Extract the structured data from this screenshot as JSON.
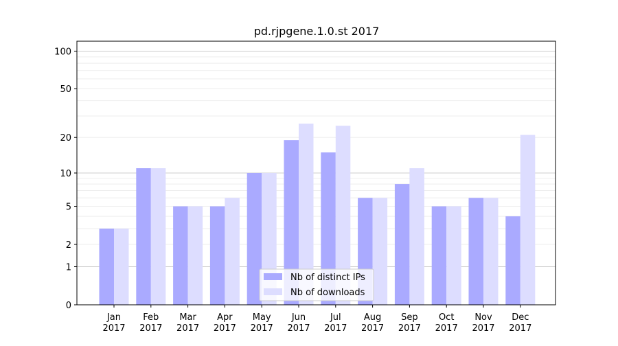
{
  "chart_data": {
    "type": "bar",
    "title": "pd.rjpgene.1.0.st 2017",
    "xlabel": "",
    "ylabel": "",
    "y_scale": "log1p",
    "ylim": [
      0,
      120
    ],
    "y_ticks": [
      0,
      1,
      2,
      5,
      10,
      20,
      50,
      100
    ],
    "y_tick_labels": [
      "0",
      "1",
      "2",
      "5",
      "10",
      "20",
      "50",
      "100"
    ],
    "grid": true,
    "categories": [
      "Jan",
      "Feb",
      "Mar",
      "Apr",
      "May",
      "Jun",
      "Jul",
      "Aug",
      "Sep",
      "Oct",
      "Nov",
      "Dec"
    ],
    "category_year": "2017",
    "series": [
      {
        "name": "Nb of distinct IPs",
        "color": "#aaaaff",
        "values": [
          3,
          11,
          5,
          5,
          10,
          19,
          15,
          6,
          8,
          5,
          6,
          4
        ]
      },
      {
        "name": "Nb of downloads",
        "color": "#ddddff",
        "values": [
          3,
          11,
          5,
          6,
          10,
          26,
          25,
          6,
          11,
          5,
          6,
          21
        ]
      }
    ],
    "legend_position": "bottom-center"
  }
}
